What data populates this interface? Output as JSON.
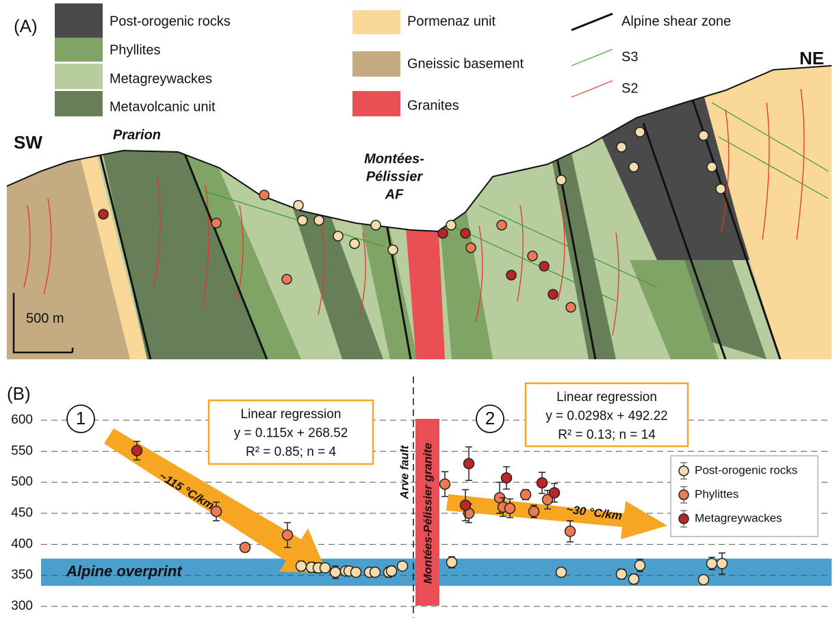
{
  "panel_a": {
    "label": "(A)",
    "legend": [
      {
        "label": "Post-orogenic rocks",
        "color": "#4a4a4a"
      },
      {
        "label": "Phyllites",
        "color": "#7fa466"
      },
      {
        "label": "Metagreywackes",
        "color": "#b7cd9e"
      },
      {
        "label": "Metavolcanic unit",
        "color": "#667f58"
      },
      {
        "label": "Pormenaz unit",
        "color": "#fad89a"
      },
      {
        "label": "Gneissic basement",
        "color": "#c4ab82"
      },
      {
        "label": "Granites",
        "color": "#ea4f55"
      }
    ],
    "structures": [
      {
        "label": "Alpine shear zone",
        "color": "#111111"
      },
      {
        "label": "S3",
        "color": "#3a9a2a"
      },
      {
        "label": "S2",
        "color": "#e8322a"
      }
    ],
    "sw": "SW",
    "ne": "NE",
    "prarion": "Prarion",
    "fault_label": [
      "Montées-",
      "Pélissier",
      "AF"
    ],
    "scale": "500 m"
  },
  "chart_data": {
    "type": "scatter",
    "xlim": [
      0,
      122
    ],
    "ylim": [
      285,
      630
    ],
    "yticks": [
      300,
      350,
      400,
      450,
      500,
      550,
      600
    ],
    "grid": true,
    "band": [
      333,
      377
    ],
    "legend_position": "right",
    "series": [
      {
        "name": "Post-orogenic rocks",
        "color": "#f5dcae",
        "x": [
          44,
          45.5,
          46.5,
          47.5,
          49,
          50.5,
          51,
          52,
          54,
          54.8,
          56.8,
          57.2,
          58.8,
          66,
          82,
          90.8,
          92.6,
          93.5,
          102.8,
          104,
          105.5
        ],
        "values": [
          365,
          363,
          362,
          362,
          355,
          357,
          357,
          355,
          355,
          355,
          355,
          357,
          365,
          371,
          355,
          352,
          344,
          366,
          343,
          369,
          369
        ],
        "errors": [
          8,
          8,
          8,
          6,
          10,
          6,
          6,
          6,
          6,
          6,
          8,
          8,
          6,
          9,
          5,
          8,
          8,
          10,
          5,
          10,
          17
        ]
      },
      {
        "name": "Phylittes",
        "color": "#ec7a55",
        "x": [
          31.6,
          35.8,
          42,
          65,
          68.5,
          73,
          73.5,
          74.5,
          76.8,
          78,
          80,
          83.3
        ],
        "values": [
          453,
          395,
          415,
          497,
          450,
          475,
          460,
          458,
          480,
          453,
          472,
          421
        ],
        "errors": [
          15,
          7,
          20,
          20,
          15,
          25,
          15,
          15,
          8,
          10,
          15,
          17
        ]
      },
      {
        "name": "Metagreywackes",
        "color": "#b8262a",
        "x": [
          20,
          68.5,
          74,
          79.2,
          81,
          68
        ],
        "values": [
          551,
          530,
          507,
          499,
          483,
          463
        ],
        "errors": [
          15,
          27,
          18,
          17,
          15,
          25
        ]
      }
    ],
    "regressions": [
      {
        "title": "Linear regression",
        "equation": "y = 0.115x + 268.52",
        "stats": "R² = 0.85; n = 4"
      },
      {
        "title": "Linear regression",
        "equation": "y = 0.0298x + 492.22",
        "stats": "R² = 0.13; n = 14"
      }
    ],
    "labels": {
      "panel": "(B)",
      "circle_1": "1",
      "circle_2": "2",
      "arrow_1": "~115 °C/km",
      "arrow_2": "~30 °C/km",
      "band": "Alpine overprint",
      "fault": "Arve fault",
      "granite": "Montées-Pélissier granite"
    }
  }
}
